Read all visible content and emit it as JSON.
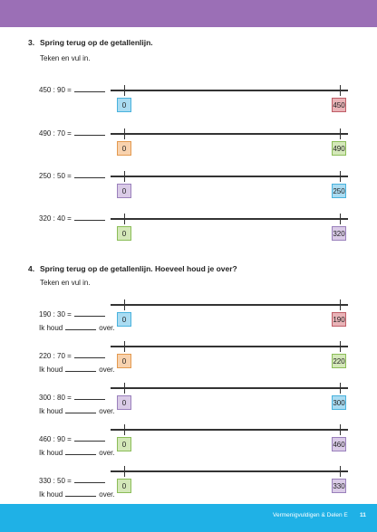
{
  "sections": [
    {
      "number": "3.",
      "title": "Spring terug op de getallenlijn.",
      "instruction": "Teken en vul in.",
      "rows": [
        {
          "expression": "450 : 90 =",
          "start": "0",
          "end": "450"
        },
        {
          "expression": "490 : 70 =",
          "start": "0",
          "end": "490"
        },
        {
          "expression": "250 : 50 =",
          "start": "0",
          "end": "250"
        },
        {
          "expression": "320 : 40 =",
          "start": "0",
          "end": "320"
        }
      ]
    },
    {
      "number": "4.",
      "title": "Spring terug op de getallenlijn. Hoeveel houd je over?",
      "instruction": "Teken en vul in.",
      "remainder_label": "Ik houd",
      "remainder_suffix": "over.",
      "rows": [
        {
          "expression": "190 : 30 =",
          "start": "0",
          "end": "190"
        },
        {
          "expression": "220 : 70 =",
          "start": "0",
          "end": "220"
        },
        {
          "expression": "300 : 80 =",
          "start": "0",
          "end": "300"
        },
        {
          "expression": "460 : 90 =",
          "start": "0",
          "end": "460"
        },
        {
          "expression": "330 : 50 =",
          "start": "0",
          "end": "330"
        }
      ]
    }
  ],
  "footer": {
    "title": "Vermenigvuldigen & Delen E",
    "page": "11"
  }
}
